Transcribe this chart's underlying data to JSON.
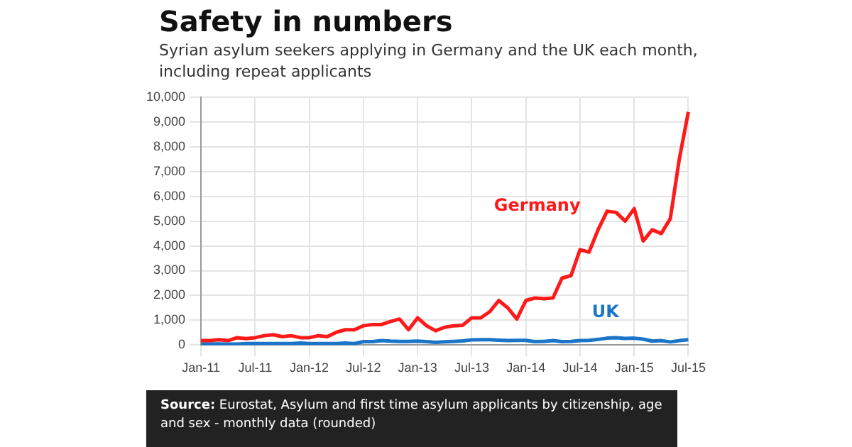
{
  "chart_data": {
    "type": "line",
    "title": "Safety in numbers",
    "subtitle": "Syrian asylum seekers applying in Germany and the UK each month, including repeat applicants",
    "categories": [
      "Jan-11",
      null,
      null,
      null,
      null,
      null,
      "Jul-11",
      null,
      null,
      null,
      null,
      null,
      "Jan-12",
      null,
      null,
      null,
      null,
      null,
      "Jul-12",
      null,
      null,
      null,
      null,
      null,
      "Jan-13",
      null,
      null,
      null,
      null,
      null,
      "Jul-13",
      null,
      null,
      null,
      null,
      null,
      "Jan-14",
      null,
      null,
      null,
      null,
      null,
      "Jul-14",
      null,
      null,
      null,
      null,
      null,
      "Jan-15",
      null,
      null,
      null,
      null,
      null,
      "Jul-15"
    ],
    "series": [
      {
        "name": "Germany",
        "color": "#ff1a1a",
        "values": [
          180,
          180,
          220,
          180,
          300,
          260,
          300,
          380,
          420,
          340,
          380,
          300,
          300,
          380,
          340,
          520,
          620,
          620,
          780,
          830,
          830,
          950,
          1050,
          620,
          1100,
          780,
          580,
          720,
          780,
          800,
          1100,
          1100,
          1350,
          1800,
          1500,
          1050,
          1800,
          1900,
          1870,
          1900,
          2700,
          2800,
          3850,
          3750,
          4650,
          5400,
          5350,
          5000,
          5500,
          4200,
          4650,
          4500,
          5100,
          7500,
          9400
        ]
      },
      {
        "name": "UK",
        "color": "#1a75c9",
        "values": [
          50,
          50,
          50,
          40,
          40,
          60,
          60,
          60,
          60,
          60,
          60,
          80,
          60,
          60,
          60,
          60,
          80,
          60,
          140,
          140,
          180,
          160,
          150,
          150,
          160,
          140,
          110,
          130,
          150,
          170,
          210,
          220,
          220,
          200,
          180,
          190,
          190,
          140,
          150,
          180,
          140,
          150,
          180,
          190,
          230,
          280,
          300,
          270,
          280,
          240,
          160,
          180,
          130,
          180,
          220
        ]
      }
    ],
    "ylim": [
      0,
      10000
    ],
    "yticks": [
      0,
      {
        "value": 1000,
        "label": "1,000"
      },
      {
        "value": 2000,
        "label": "2,000"
      },
      {
        "value": 3000,
        "label": "3,000"
      },
      {
        "value": 4000,
        "label": "4,000"
      },
      {
        "value": 5000,
        "label": "5,000"
      },
      {
        "value": 6000,
        "label": "6,000"
      },
      {
        "value": 7000,
        "label": "7,000"
      },
      {
        "value": 8000,
        "label": "8,000"
      },
      {
        "value": 9000,
        "label": "9,000"
      },
      {
        "value": 10000,
        "label": "10,000"
      }
    ],
    "grid": true,
    "legend": false,
    "marker": "none",
    "line_style": "solid",
    "annotations": [
      "Source: Eurostat, Asylum and first time asylum applicants by citizenship, age and sex - monthly data (rounded)"
    ]
  }
}
